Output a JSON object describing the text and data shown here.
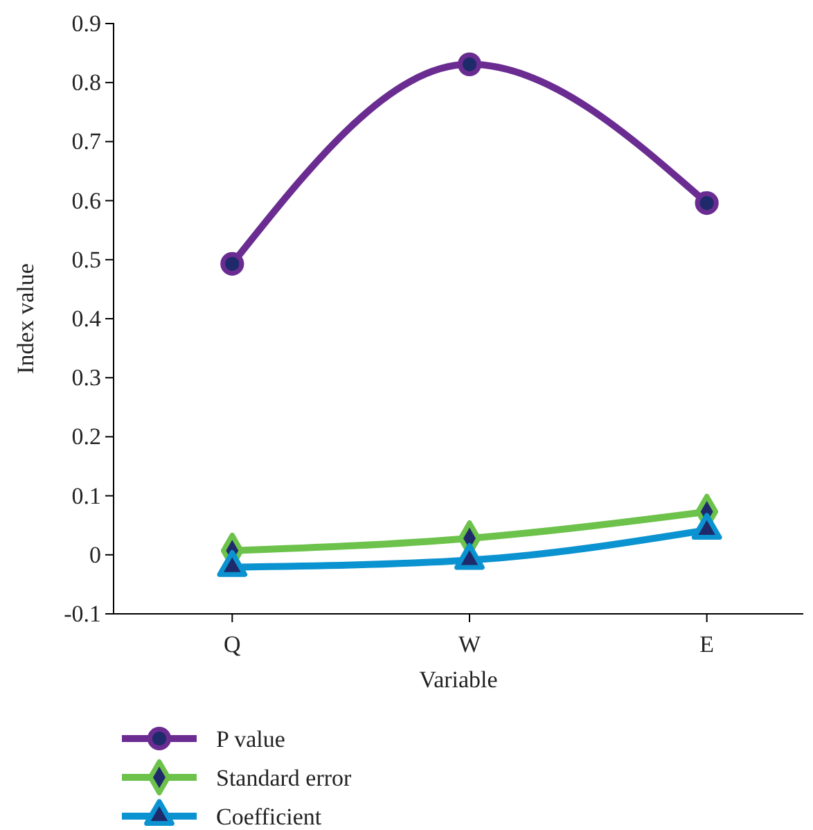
{
  "chart_data": {
    "type": "line",
    "xlabel": "Variable",
    "ylabel": "Index value",
    "categories": [
      "Q",
      "W",
      "E"
    ],
    "series": [
      {
        "name": "P value",
        "color": "#6a2c91",
        "marker": "circle",
        "values": [
          0.493,
          0.831,
          0.596
        ]
      },
      {
        "name": "Standard error",
        "color": "#6cc24a",
        "marker": "diamond",
        "values": [
          0.007,
          0.028,
          0.073
        ]
      },
      {
        "name": "Coefficient",
        "color": "#0a93d0",
        "marker": "triangle",
        "values": [
          -0.021,
          -0.009,
          0.042
        ]
      }
    ],
    "ylim": [
      -0.1,
      0.9
    ],
    "yticks": [
      {
        "value": -0.1,
        "label": "-0.1"
      },
      0,
      0.1,
      0.2,
      0.3,
      0.4,
      0.5,
      0.6,
      0.7,
      0.8,
      0.9
    ],
    "grid": false,
    "legend": "bottom",
    "line_style": "solid"
  }
}
